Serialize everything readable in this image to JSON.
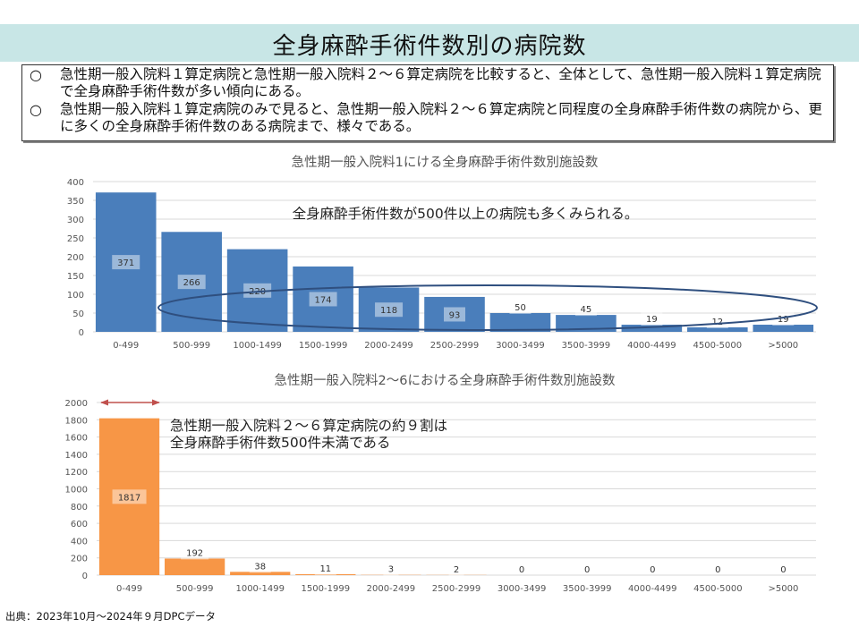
{
  "page": {
    "title": "全身麻酔手術件数別の病院数",
    "summary": [
      {
        "bullet": "○",
        "text": "急性期一般入院料１算定病院と急性期一般入院料２～６算定病院を比較すると、全体として、急性期一般入院料１算定病院で全身麻酔手術件数が多い傾向にある。"
      },
      {
        "bullet": "○",
        "text": "急性期一般入院料１算定病院のみで見ると、急性期一般入院料２～６算定病院と同程度の全身麻酔手術件数の病院から、更に多くの全身麻酔手術件数のある病院まで、様々である。"
      }
    ],
    "source": "出典：2023年10月～2024年９月DPCデータ"
  },
  "chart_data": [
    {
      "type": "bar",
      "title": "急性期一般入院料1にける全身麻酔手術件数別施設数",
      "xlabel": "",
      "ylabel": "",
      "categories": [
        "0-499",
        "500-999",
        "1000-1499",
        "1500-1999",
        "2000-2499",
        "2500-2999",
        "3000-3499",
        "3500-3999",
        "4000-4499",
        "4500-5000",
        ">5000"
      ],
      "values": [
        371,
        266,
        220,
        174,
        118,
        93,
        50,
        45,
        19,
        12,
        19
      ],
      "ylim": [
        0,
        400
      ],
      "yticks": [
        0,
        50,
        100,
        150,
        200,
        250,
        300,
        350,
        400
      ],
      "grid": true,
      "color": "#4a7ebb",
      "annotation": "全身麻酔手術件数が500件以上の病院も多くみられる。",
      "highlight": {
        "shape": "ellipse",
        "from_category": "500-999",
        "to_category": ">5000",
        "color": "#2f4f7f"
      }
    },
    {
      "type": "bar",
      "title": "急性期一般入院料2～6における全身麻酔手術件数別施設数",
      "xlabel": "",
      "ylabel": "",
      "categories": [
        "0-499",
        "500-999",
        "1000-1499",
        "1500-1999",
        "2000-2499",
        "2500-2999",
        "3000-3499",
        "3500-3999",
        "4000-4499",
        "4500-5000",
        ">5000"
      ],
      "values": [
        1817,
        192,
        38,
        11,
        3,
        2,
        0,
        0,
        0,
        0,
        0
      ],
      "ylim": [
        0,
        2000
      ],
      "yticks": [
        0,
        200,
        400,
        600,
        800,
        1000,
        1200,
        1400,
        1600,
        1800,
        2000
      ],
      "grid": true,
      "color": "#f79646",
      "annotation": [
        "急性期一般入院料２～６算定病院の約９割は",
        "全身麻酔手術件数500件未満である"
      ],
      "highlight": {
        "shape": "double-arrow",
        "category": "0-499",
        "color": "#c0504d"
      }
    }
  ]
}
